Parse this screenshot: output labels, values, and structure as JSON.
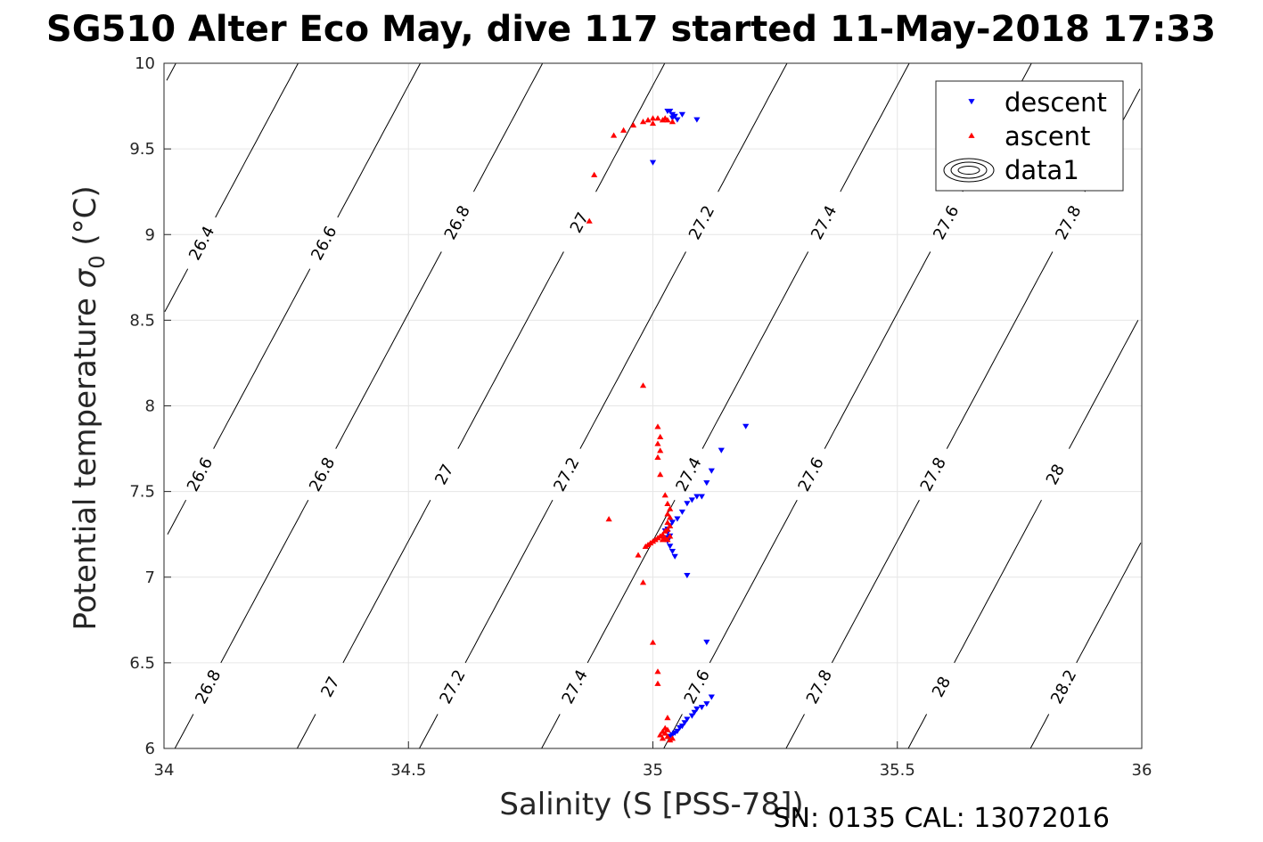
{
  "chart_data": {
    "type": "scatter",
    "title": "SG510 Alter Eco May, dive 117 started 11-May-2018 17:33",
    "xlabel": "Salinity (S [PSS-78])",
    "ylabel": "Potential temperature σ₀ (°C)",
    "ylabel_main": "Potential temperature ",
    "ylabel_sym": "σ",
    "ylabel_sub": "0",
    "ylabel_unit": " (°C)",
    "footer": "SN: 0135  CAL: 13072016",
    "xlim": [
      34,
      36
    ],
    "ylim": [
      6,
      10
    ],
    "x_ticks": [
      34,
      34.5,
      35,
      35.5,
      36
    ],
    "x_tick_labels": [
      "34",
      "34.5",
      "35",
      "35.5",
      "36"
    ],
    "y_ticks": [
      6,
      6.5,
      7,
      7.5,
      8,
      8.5,
      9,
      9.5,
      10
    ],
    "y_tick_labels": [
      "6",
      "6.5",
      "7",
      "7.5",
      "8",
      "8.5",
      "9",
      "9.5",
      "10"
    ],
    "grid": true,
    "legend_position": "top-right",
    "legend": [
      {
        "label": "descent",
        "marker": "triangle-down",
        "color": "#0000ff"
      },
      {
        "label": "ascent",
        "marker": "triangle-up",
        "color": "#ff0000"
      },
      {
        "label": "data1",
        "marker": "contour",
        "color": "#000000"
      }
    ],
    "series": [
      {
        "name": "descent",
        "marker": "triangle-down",
        "color": "#0000ff",
        "points": [
          [
            35.03,
            9.72
          ],
          [
            35.035,
            9.72
          ],
          [
            35.04,
            9.7
          ],
          [
            35.045,
            9.69
          ],
          [
            35.06,
            9.7
          ],
          [
            35.09,
            9.67
          ],
          [
            35.04,
            9.68
          ],
          [
            35.05,
            9.67
          ],
          [
            35.0,
            9.42
          ],
          [
            35.19,
            7.88
          ],
          [
            35.14,
            7.74
          ],
          [
            35.12,
            7.62
          ],
          [
            35.11,
            7.55
          ],
          [
            35.09,
            7.47
          ],
          [
            35.1,
            7.47
          ],
          [
            35.08,
            7.45
          ],
          [
            35.07,
            7.43
          ],
          [
            35.06,
            7.38
          ],
          [
            35.05,
            7.34
          ],
          [
            35.04,
            7.32
          ],
          [
            35.035,
            7.3
          ],
          [
            35.03,
            7.28
          ],
          [
            35.025,
            7.27
          ],
          [
            35.03,
            7.26
          ],
          [
            35.035,
            7.24
          ],
          [
            35.03,
            7.23
          ],
          [
            35.025,
            7.22
          ],
          [
            35.03,
            7.21
          ],
          [
            35.035,
            7.18
          ],
          [
            35.04,
            7.15
          ],
          [
            35.045,
            7.12
          ],
          [
            35.07,
            7.01
          ],
          [
            35.11,
            6.62
          ],
          [
            35.12,
            6.3
          ],
          [
            35.11,
            6.26
          ],
          [
            35.1,
            6.24
          ],
          [
            35.09,
            6.23
          ],
          [
            35.085,
            6.21
          ],
          [
            35.08,
            6.19
          ],
          [
            35.07,
            6.17
          ],
          [
            35.065,
            6.15
          ],
          [
            35.06,
            6.13
          ],
          [
            35.055,
            6.12
          ],
          [
            35.05,
            6.1
          ],
          [
            35.045,
            6.09
          ],
          [
            35.04,
            6.08
          ],
          [
            35.035,
            6.07
          ]
        ]
      },
      {
        "name": "ascent",
        "marker": "triangle-up",
        "color": "#ff0000",
        "points": [
          [
            34.88,
            9.35
          ],
          [
            34.92,
            9.58
          ],
          [
            34.94,
            9.61
          ],
          [
            34.96,
            9.64
          ],
          [
            34.98,
            9.66
          ],
          [
            34.99,
            9.67
          ],
          [
            35.0,
            9.68
          ],
          [
            35.01,
            9.68
          ],
          [
            35.02,
            9.67
          ],
          [
            35.025,
            9.68
          ],
          [
            35.03,
            9.67
          ],
          [
            35.04,
            9.66
          ],
          [
            35.0,
            9.65
          ],
          [
            34.87,
            9.08
          ],
          [
            34.98,
            8.12
          ],
          [
            35.01,
            7.88
          ],
          [
            35.015,
            7.82
          ],
          [
            35.01,
            7.78
          ],
          [
            35.015,
            7.74
          ],
          [
            35.01,
            7.7
          ],
          [
            35.015,
            7.6
          ],
          [
            35.025,
            7.48
          ],
          [
            35.03,
            7.43
          ],
          [
            35.035,
            7.4
          ],
          [
            35.03,
            7.37
          ],
          [
            35.035,
            7.35
          ],
          [
            35.03,
            7.32
          ],
          [
            35.035,
            7.3
          ],
          [
            35.03,
            7.28
          ],
          [
            35.025,
            7.27
          ],
          [
            35.02,
            7.25
          ],
          [
            35.015,
            7.24
          ],
          [
            35.01,
            7.23
          ],
          [
            35.005,
            7.22
          ],
          [
            35.0,
            7.21
          ],
          [
            34.995,
            7.2
          ],
          [
            34.99,
            7.19
          ],
          [
            34.985,
            7.18
          ],
          [
            35.02,
            7.22
          ],
          [
            35.025,
            7.23
          ],
          [
            35.03,
            7.22
          ],
          [
            35.035,
            7.24
          ],
          [
            34.91,
            7.34
          ],
          [
            34.97,
            7.13
          ],
          [
            34.98,
            6.97
          ],
          [
            35.0,
            6.62
          ],
          [
            35.01,
            6.45
          ],
          [
            35.01,
            6.38
          ],
          [
            35.03,
            6.18
          ],
          [
            35.025,
            6.12
          ],
          [
            35.02,
            6.1
          ],
          [
            35.015,
            6.08
          ],
          [
            35.02,
            6.06
          ],
          [
            35.03,
            6.07
          ],
          [
            35.035,
            6.05
          ],
          [
            35.04,
            6.06
          ],
          [
            35.025,
            6.09
          ],
          [
            35.03,
            6.11
          ]
        ]
      }
    ],
    "contours": [
      {
        "level": 26.4,
        "labels": [
          [
            34.075,
            8.95
          ]
        ]
      },
      {
        "level": 26.6,
        "labels": [
          [
            34.075,
            7.6
          ],
          [
            34.33,
            8.95
          ]
        ]
      },
      {
        "level": 26.8,
        "labels": [
          [
            34.09,
            6.36
          ],
          [
            34.35,
            7.6
          ],
          [
            34.6,
            9.07
          ]
        ]
      },
      {
        "level": 27,
        "labels": [
          [
            34.34,
            6.36
          ],
          [
            34.575,
            7.6
          ],
          [
            34.845,
            9.07
          ]
        ]
      },
      {
        "level": 27.2,
        "labels": [
          [
            34.59,
            6.36
          ],
          [
            34.84,
            7.6
          ],
          [
            35.1,
            9.07
          ]
        ]
      },
      {
        "level": 27.4,
        "labels": [
          [
            34.84,
            6.36
          ],
          [
            35.1,
            7.6
          ],
          [
            35.355,
            9.07
          ]
        ]
      },
      {
        "level": 27.6,
        "labels": [
          [
            35.1,
            6.36
          ],
          [
            35.355,
            7.6
          ],
          [
            35.6,
            9.07
          ]
        ]
      },
      {
        "level": 27.8,
        "labels": [
          [
            35.35,
            6.36
          ],
          [
            35.6,
            7.6
          ],
          [
            35.84,
            9.07
          ]
        ]
      },
      {
        "level": 28,
        "labels": [
          [
            35.6,
            6.36
          ],
          [
            35.84,
            7.6
          ]
        ]
      },
      {
        "level": 28.2,
        "labels": [
          [
            35.84,
            6.36
          ]
        ]
      }
    ]
  }
}
